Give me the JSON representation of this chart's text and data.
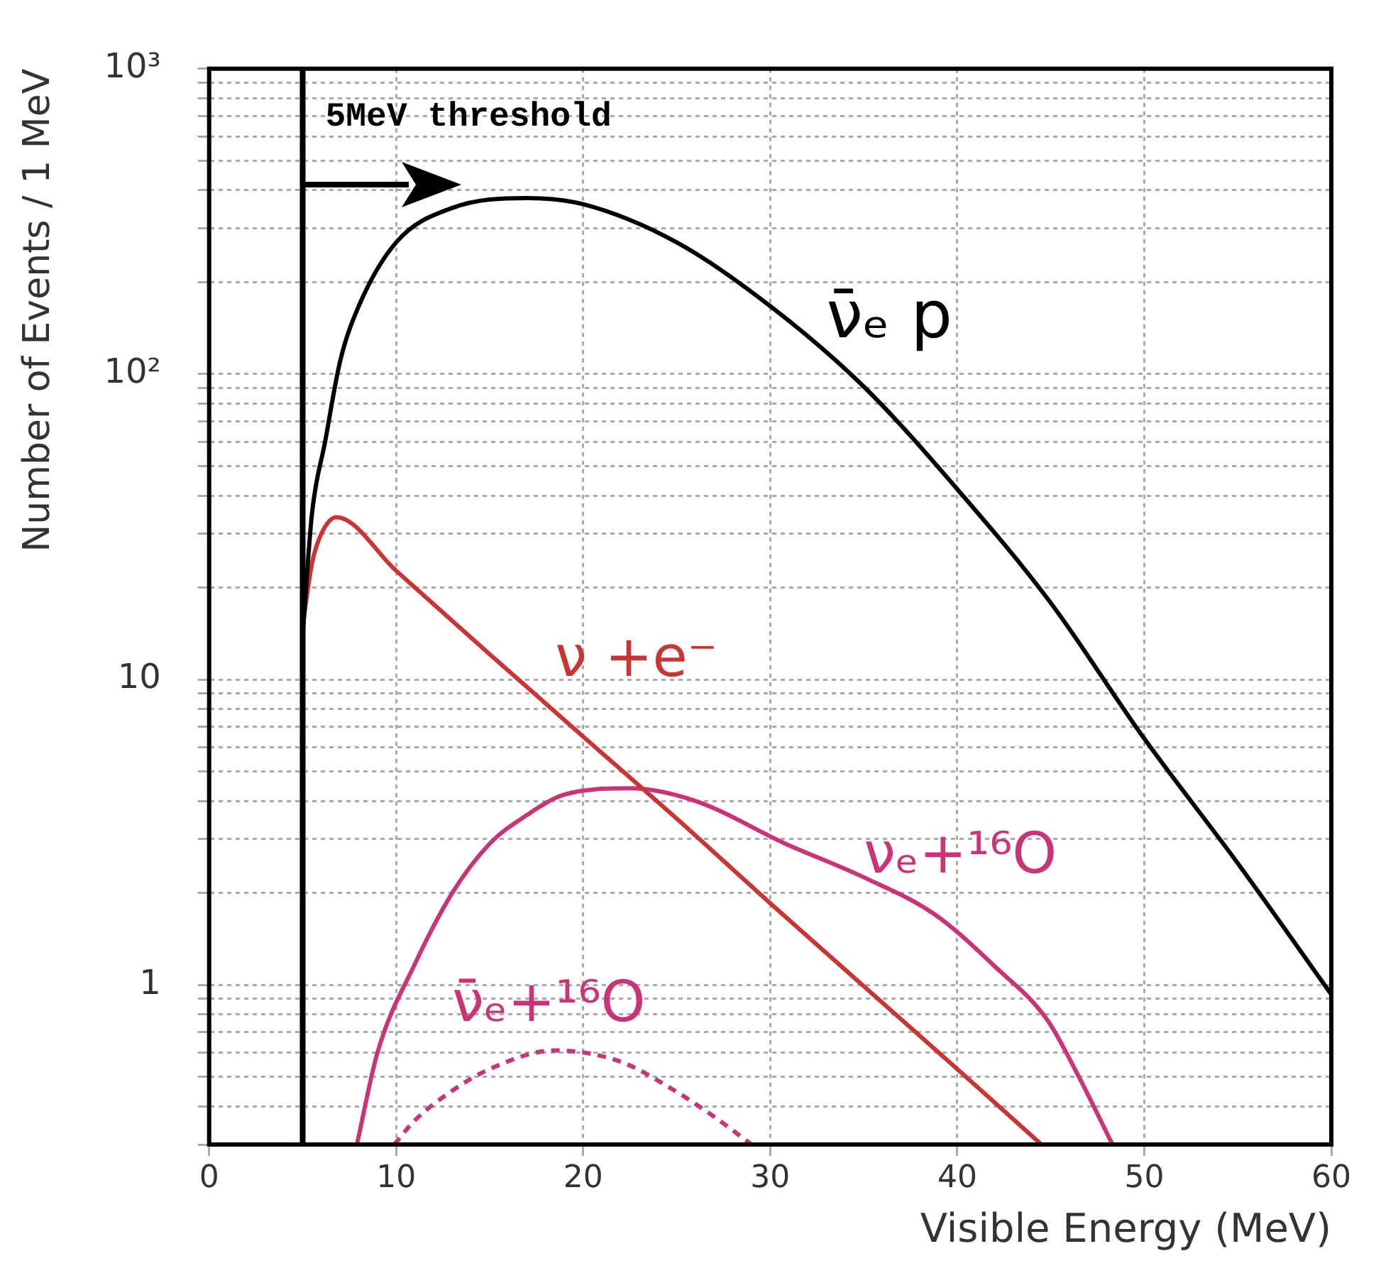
{
  "chart_data": {
    "type": "line",
    "xlabel": "Visible Energy (MeV)",
    "ylabel": "Number of Events / 1 MeV",
    "xlim": [
      0,
      60
    ],
    "xticks": [
      0,
      10,
      20,
      30,
      40,
      50,
      60
    ],
    "ylim": [
      0.3,
      1000
    ],
    "yticks": [
      {
        "value": 0.3,
        "label": null
      },
      {
        "value": 0.4,
        "label": null
      },
      {
        "value": 0.5,
        "label": null
      },
      {
        "value": 0.6,
        "label": null
      },
      {
        "value": 0.7,
        "label": null
      },
      {
        "value": 0.8,
        "label": null
      },
      {
        "value": 0.9,
        "label": null
      },
      1,
      {
        "value": 2,
        "label": null
      },
      {
        "value": 3,
        "label": null
      },
      {
        "value": 4,
        "label": null
      },
      {
        "value": 5,
        "label": null
      },
      {
        "value": 6,
        "label": null
      },
      {
        "value": 7,
        "label": null
      },
      {
        "value": 8,
        "label": null
      },
      {
        "value": 9,
        "label": null
      },
      10,
      {
        "value": 20,
        "label": null
      },
      {
        "value": 30,
        "label": null
      },
      {
        "value": 40,
        "label": null
      },
      {
        "value": 50,
        "label": null
      },
      {
        "value": 60,
        "label": null
      },
      {
        "value": 70,
        "label": null
      },
      {
        "value": 80,
        "label": null
      },
      {
        "value": 90,
        "label": null
      },
      {
        "value": 100,
        "label": "10²"
      },
      {
        "value": 200,
        "label": null
      },
      {
        "value": 300,
        "label": null
      },
      {
        "value": 400,
        "label": null
      },
      {
        "value": 500,
        "label": null
      },
      {
        "value": 600,
        "label": null
      },
      {
        "value": 700,
        "label": null
      },
      {
        "value": 800,
        "label": null
      },
      {
        "value": 900,
        "label": null
      },
      {
        "value": 1000,
        "label": "10³"
      }
    ],
    "log": "y",
    "grid": true,
    "legend": false,
    "marker": "none",
    "series": [
      {
        "name": "ν̄ₑ p",
        "color": "#000000",
        "x": [
          5,
          5.5,
          6.2,
          7,
          8,
          10,
          13,
          17,
          20,
          25,
          30,
          35,
          40,
          45,
          50,
          55,
          60
        ],
        "values": [
          14,
          35,
          60,
          110,
          167,
          270,
          350,
          377,
          360,
          270,
          167,
          91,
          42,
          17.8,
          6.4,
          2.5,
          0.93
        ]
      },
      {
        "name": "ν +e⁻",
        "color": "#cc3333",
        "x": [
          5,
          5.5,
          6,
          6.8,
          10,
          15,
          20,
          25,
          30,
          35,
          40,
          44.5
        ],
        "values": [
          15,
          24,
          30,
          34,
          22.7,
          12.1,
          6.5,
          3.5,
          1.85,
          0.99,
          0.53,
          0.3
        ]
      },
      {
        "name": "νₑ+¹⁶O",
        "color": "#cc3377",
        "x": [
          7.9,
          9,
          11,
          13,
          15,
          17,
          19,
          22.5,
          26,
          30.8,
          35,
          38.8,
          42,
          44.8,
          46.5,
          48.3
        ],
        "values": [
          0.3,
          0.6,
          1.17,
          2.0,
          2.9,
          3.6,
          4.2,
          4.4,
          4.0,
          2.9,
          2.25,
          1.7,
          1.15,
          0.77,
          0.5,
          0.3
        ]
      },
      {
        "name": "ν̄ₑ+¹⁶O",
        "color": "#cc3377",
        "line_style": "dashed",
        "x": [
          9.9,
          11,
          13,
          15,
          18.5,
          22,
          24.9,
          27,
          29
        ],
        "values": [
          0.3,
          0.36,
          0.45,
          0.53,
          0.61,
          0.56,
          0.45,
          0.37,
          0.3
        ]
      }
    ],
    "ref_lines": [
      {
        "axis": "x",
        "value": 5,
        "label": "5MeV threshold",
        "color": "#000000"
      }
    ]
  }
}
